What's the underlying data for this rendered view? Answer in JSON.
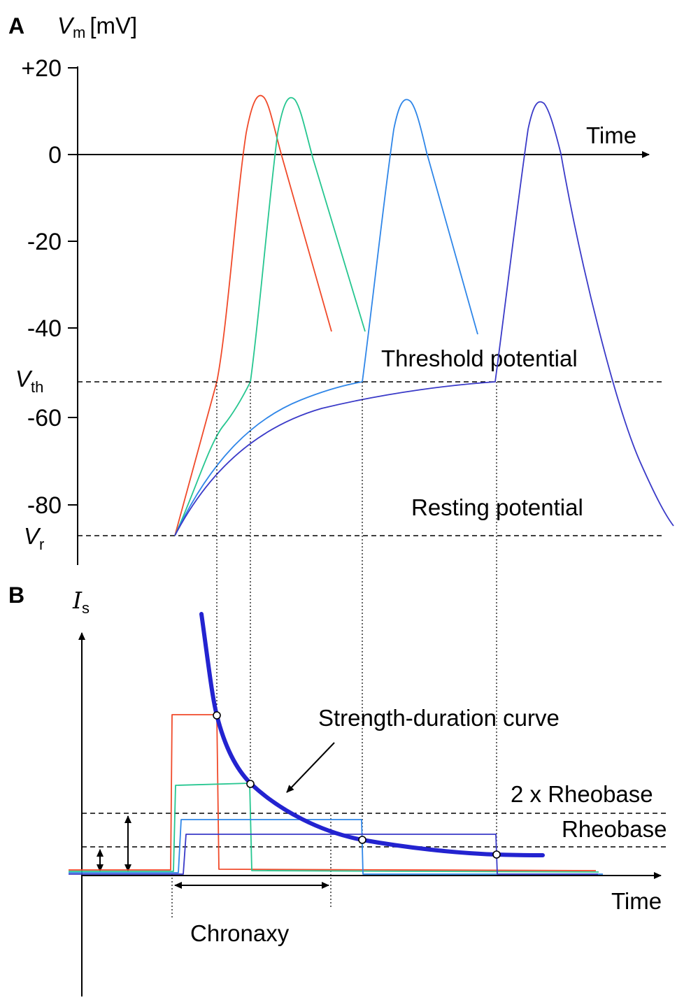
{
  "panel_a": {
    "panel_label": "A",
    "y_axis_symbol": "V",
    "y_axis_subscript": "m",
    "y_axis_unit": "[mV]",
    "y_ticks": [
      "+20",
      "0",
      "-20",
      "-40",
      "-60",
      "-80"
    ],
    "v_th_symbol": "V",
    "v_th_subscript": "th",
    "v_r_symbol": "V",
    "v_r_subscript": "r",
    "x_label": "Time",
    "threshold_label": "Threshold potential",
    "resting_label": "Resting potential"
  },
  "panel_b": {
    "panel_label": "B",
    "y_axis_symbol": "I",
    "y_axis_subscript": "s",
    "x_label": "Time",
    "curve_label": "Strength-duration curve",
    "rheobase2_label": "2 x Rheobase",
    "rheobase_label": "Rheobase",
    "chronaxy_label": "Chronaxy"
  },
  "colors": {
    "trace_1": "#f04a2a",
    "trace_2": "#26c690",
    "trace_3": "#2f86e8",
    "trace_4": "#3a3ac8",
    "sd_curve": "#2323d0"
  }
}
